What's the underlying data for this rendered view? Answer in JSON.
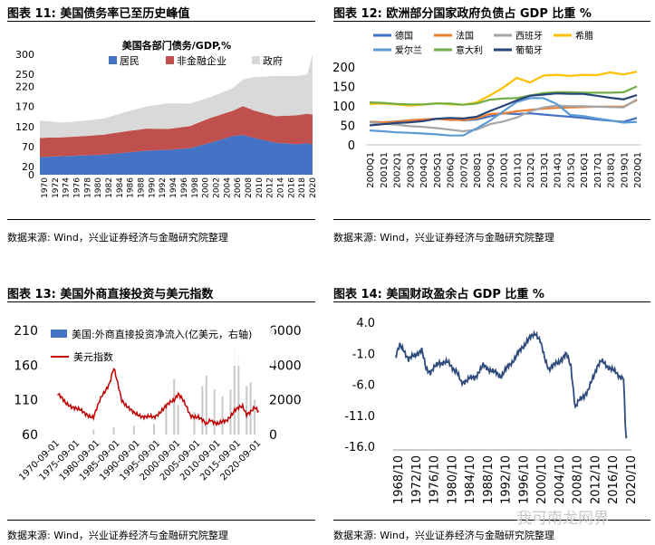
{
  "panels": {
    "p11": {
      "title": "图表 11:  美国债务率已至历史峰值",
      "source": "数据来源: Wind，兴业证券经济与金融研究院整理"
    },
    "p12": {
      "title": "图表 12:  欧洲部分国家政府负债占 GDP 比重  %",
      "source": "数据来源: Wind，兴业证券经济与金融研究院整理"
    },
    "p13": {
      "title": "图表 13:  美国外商直接投资与美元指数",
      "source": "数据来源: Wind，兴业证券经济与金融研究院整理"
    },
    "p14": {
      "title": "图表 14:  美国财政盈余占 GDP 比重  %",
      "source": "数据来源: Wind，兴业证券经济与金融研究院整理"
    }
  },
  "watermark": "我可南龙网界",
  "chart_data": [
    {
      "id": "c11",
      "type": "area",
      "stacked": true,
      "title": "美国各部门债务/GDP,%",
      "x": [
        1970,
        1974,
        1978,
        1982,
        1986,
        1990,
        1994,
        1998,
        2002,
        2006,
        2008,
        2010,
        2014,
        2018,
        2020,
        2021
      ],
      "tick_labels": [
        "1970",
        "1972",
        "1974",
        "1976",
        "1978",
        "1980",
        "1982",
        "1984",
        "1986",
        "1988",
        "1990",
        "1992",
        "1994",
        "1996",
        "1998",
        "2000",
        "2002",
        "2004",
        "2006",
        "2008",
        "2010",
        "2012",
        "2014",
        "2016",
        "2018",
        "2020"
      ],
      "series": [
        {
          "name": "居民",
          "color": "#4472c4",
          "values": [
            44,
            46,
            48,
            50,
            55,
            60,
            62,
            66,
            80,
            96,
            99,
            92,
            80,
            76,
            78,
            76
          ]
        },
        {
          "name": "非金融企业",
          "color": "#c0504d",
          "values": [
            48,
            47,
            48,
            50,
            53,
            55,
            52,
            55,
            62,
            63,
            72,
            68,
            66,
            72,
            74,
            74
          ]
        },
        {
          "name": "政府",
          "color": "#d9d9d9",
          "values": [
            43,
            37,
            38,
            40,
            48,
            55,
            64,
            56,
            52,
            56,
            66,
            83,
            100,
            98,
            98,
            150
          ]
        }
      ],
      "ylim": [
        0,
        300
      ],
      "yticks": [
        0,
        20,
        70,
        120,
        170,
        220,
        250,
        300
      ]
    },
    {
      "id": "c12",
      "type": "line",
      "x_labels": [
        "2000Q1",
        "2001Q1",
        "2002Q1",
        "2003Q1",
        "2004Q1",
        "2005Q1",
        "2006Q1",
        "2007Q1",
        "2008Q1",
        "2009Q1",
        "2010Q1",
        "2011Q1",
        "2012Q1",
        "2013Q1",
        "2014Q1",
        "2015Q1",
        "2016Q1",
        "2017Q1",
        "2018Q1",
        "2019Q1",
        "2020Q1"
      ],
      "series": [
        {
          "name": "德国",
          "color": "#4472c4",
          "values": [
            59,
            58,
            60,
            63,
            65,
            67,
            66,
            63,
            65,
            73,
            81,
            79,
            81,
            78,
            75,
            72,
            69,
            65,
            62,
            59,
            69
          ]
        },
        {
          "name": "法国",
          "color": "#ed7d31",
          "values": [
            59,
            58,
            59,
            63,
            65,
            67,
            64,
            64,
            68,
            79,
            81,
            86,
            90,
            93,
            95,
            96,
            97,
            98,
            98,
            98,
            115
          ]
        },
        {
          "name": "西班牙",
          "color": "#a5a5a5",
          "values": [
            58,
            54,
            52,
            48,
            46,
            43,
            39,
            35,
            39,
            53,
            60,
            70,
            86,
            96,
            101,
            99,
            99,
            98,
            97,
            96,
            117
          ]
        },
        {
          "name": "希腊",
          "color": "#ffc000",
          "values": [
            105,
            106,
            104,
            101,
            103,
            107,
            104,
            103,
            109,
            127,
            147,
            172,
            160,
            178,
            180,
            177,
            180,
            179,
            186,
            181,
            188
          ]
        },
        {
          "name": "爱尔兰",
          "color": "#5b9bd5",
          "values": [
            37,
            35,
            32,
            31,
            29,
            27,
            24,
            24,
            42,
            62,
            86,
            110,
            120,
            120,
            105,
            77,
            74,
            68,
            63,
            57,
            59
          ]
        },
        {
          "name": "意大利",
          "color": "#70ad47",
          "values": [
            109,
            108,
            105,
            104,
            104,
            106,
            106,
            103,
            106,
            116,
            119,
            120,
            127,
            133,
            135,
            135,
            134,
            134,
            134,
            135,
            150
          ]
        },
        {
          "name": "葡萄牙",
          "color": "#264478",
          "values": [
            50,
            53,
            56,
            58,
            61,
            67,
            69,
            68,
            72,
            87,
            100,
            114,
            126,
            129,
            132,
            131,
            131,
            126,
            121,
            117,
            128
          ]
        }
      ],
      "ylim": [
        0,
        200
      ],
      "yticks": [
        0,
        50,
        100,
        150,
        200
      ]
    },
    {
      "id": "c13",
      "type": "bar+line",
      "x_labels": [
        "1970-09-01",
        "1975-09-01",
        "1980-09-01",
        "1985-09-01",
        "1990-09-01",
        "1995-09-01",
        "2000-09-01",
        "2005-09-01",
        "2010-09-01",
        "2015-09-01",
        "2020-09-01"
      ],
      "series": [
        {
          "name": "美国:外商直接投资净流入(亿美元，右轴)",
          "color": "#4472c4",
          "axis": "right",
          "type": "bar",
          "x": [
            1980,
            1985,
            1990,
            1995,
            1998,
            2000,
            2001,
            2005,
            2007,
            2008,
            2010,
            2012,
            2014,
            2015,
            2016,
            2018,
            2019,
            2020
          ],
          "values": [
            300,
            400,
            500,
            600,
            1800,
            3200,
            1700,
            1300,
            2800,
            3400,
            2600,
            2200,
            2600,
            5000,
            4700,
            2800,
            3000,
            2000
          ]
        },
        {
          "name": "美元指数",
          "color": "#c00000",
          "axis": "left",
          "type": "line",
          "x": [
            1971,
            1973,
            1975,
            1978,
            1980,
            1982,
            1984,
            1985,
            1987,
            1990,
            1992,
            1995,
            1997,
            2000,
            2001,
            2002,
            2004,
            2006,
            2008,
            2009,
            2011,
            2013,
            2015,
            2017,
            2018,
            2020,
            2021
          ],
          "values": [
            120,
            105,
            100,
            90,
            85,
            115,
            135,
            155,
            110,
            90,
            87,
            84,
            96,
            110,
            120,
            112,
            87,
            86,
            74,
            82,
            75,
            80,
            95,
            100,
            90,
            98,
            92
          ]
        }
      ],
      "left_ylim": [
        60,
        210
      ],
      "left_yticks": [
        60,
        110,
        160,
        210
      ],
      "right_ylim": [
        0,
        6000
      ],
      "right_yticks": [
        0,
        2000,
        4000,
        6000
      ]
    },
    {
      "id": "c14",
      "type": "line",
      "x_labels": [
        "1968/10",
        "1972/10",
        "1976/10",
        "1980/10",
        "1984/10",
        "1988/10",
        "1992/10",
        "1996/10",
        "2000/10",
        "2004/10",
        "2008/10",
        "2012/10",
        "2016/10",
        "2020/10"
      ],
      "series": [
        {
          "name": "美国财政盈余占GDP比重",
          "color": "#2f4b7c",
          "x": [
            1968,
            1969,
            1970,
            1971,
            1972,
            1974,
            1975,
            1976,
            1978,
            1980,
            1982,
            1983,
            1985,
            1986,
            1988,
            1990,
            1992,
            1993,
            1995,
            1997,
            1998,
            2000,
            2001,
            2002,
            2003,
            2005,
            2007,
            2008,
            2009,
            2010,
            2012,
            2014,
            2015,
            2017,
            2019,
            2020,
            2020.5,
            2021
          ],
          "values": [
            -1.5,
            0.2,
            -0.5,
            -2,
            -1.5,
            -0.5,
            -3.5,
            -4,
            -2.5,
            -2.5,
            -4,
            -5.8,
            -5,
            -5,
            -3,
            -3.8,
            -4.7,
            -3.8,
            -2,
            0,
            1,
            2.3,
            1,
            -1.8,
            -3.5,
            -2.5,
            -1.2,
            -3,
            -9.8,
            -8.5,
            -7,
            -3,
            -2.3,
            -3.4,
            -4.6,
            -5,
            -14.5,
            -15.2
          ]
        }
      ],
      "ylim": [
        -16,
        4
      ],
      "yticks": [
        4.0,
        -1.0,
        -6.0,
        -11.0,
        -16.0
      ]
    }
  ]
}
